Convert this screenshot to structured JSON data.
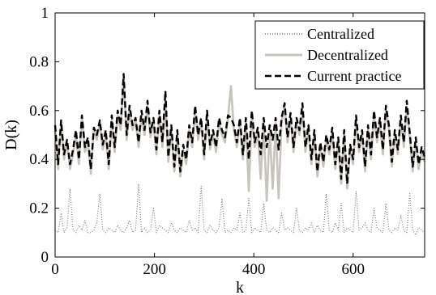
{
  "chart_data": {
    "type": "line",
    "title": "",
    "xlabel": "k",
    "ylabel": "D(k)",
    "xlim": [
      0,
      744
    ],
    "ylim": [
      0,
      1
    ],
    "grid": false,
    "legend_position": "top-right",
    "x_ticks": [
      0,
      200,
      400,
      600
    ],
    "y_ticks": [
      0,
      0.2,
      0.4,
      0.6,
      0.8,
      1
    ],
    "x_tick_labels": [
      "0",
      "200",
      "400",
      "600"
    ],
    "y_tick_labels": [
      "0",
      "0.2",
      "0.4",
      "0.6",
      "0.8",
      "1"
    ],
    "x_step": 6,
    "series": [
      {
        "name": "Centralized",
        "color": "#707070",
        "dash": "dotted",
        "values": [
          0.11,
          0.1,
          0.18,
          0.1,
          0.12,
          0.28,
          0.11,
          0.1,
          0.13,
          0.11,
          0.15,
          0.1,
          0.1,
          0.11,
          0.14,
          0.26,
          0.11,
          0.1,
          0.12,
          0.11,
          0.1,
          0.13,
          0.11,
          0.1,
          0.12,
          0.15,
          0.1,
          0.11,
          0.3,
          0.1,
          0.12,
          0.1,
          0.11,
          0.2,
          0.1,
          0.13,
          0.12,
          0.11,
          0.1,
          0.14,
          0.11,
          0.1,
          0.12,
          0.11,
          0.1,
          0.15,
          0.11,
          0.12,
          0.1,
          0.29,
          0.11,
          0.1,
          0.13,
          0.11,
          0.1,
          0.12,
          0.24,
          0.1,
          0.11,
          0.1,
          0.12,
          0.11,
          0.18,
          0.1,
          0.11,
          0.24,
          0.1,
          0.12,
          0.11,
          0.1,
          0.22,
          0.11,
          0.1,
          0.12,
          0.11,
          0.1,
          0.18,
          0.11,
          0.12,
          0.11,
          0.1,
          0.2,
          0.11,
          0.1,
          0.12,
          0.11,
          0.14,
          0.1,
          0.13,
          0.11,
          0.1,
          0.26,
          0.11,
          0.1,
          0.14,
          0.11,
          0.22,
          0.1,
          0.12,
          0.11,
          0.1,
          0.27,
          0.11,
          0.12,
          0.14,
          0.11,
          0.1,
          0.2,
          0.12,
          0.11,
          0.1,
          0.22,
          0.11,
          0.1,
          0.12,
          0.11,
          0.17,
          0.11,
          0.1,
          0.26,
          0.11,
          0.09,
          0.12,
          0.11,
          0.1
        ]
      },
      {
        "name": "Decentralized",
        "color": "#c8c4bc",
        "dash": "solid",
        "values": [
          0.52,
          0.36,
          0.55,
          0.4,
          0.47,
          0.36,
          0.42,
          0.5,
          0.38,
          0.57,
          0.43,
          0.47,
          0.34,
          0.52,
          0.48,
          0.55,
          0.44,
          0.5,
          0.36,
          0.56,
          0.43,
          0.58,
          0.52,
          0.73,
          0.48,
          0.6,
          0.52,
          0.56,
          0.45,
          0.58,
          0.5,
          0.62,
          0.49,
          0.55,
          0.42,
          0.58,
          0.45,
          0.64,
          0.39,
          0.52,
          0.35,
          0.5,
          0.33,
          0.44,
          0.38,
          0.52,
          0.45,
          0.6,
          0.48,
          0.55,
          0.4,
          0.58,
          0.44,
          0.5,
          0.43,
          0.55,
          0.5,
          0.47,
          0.57,
          0.7,
          0.52,
          0.45,
          0.55,
          0.4,
          0.55,
          0.27,
          0.58,
          0.45,
          0.51,
          0.32,
          0.55,
          0.23,
          0.52,
          0.28,
          0.55,
          0.24,
          0.55,
          0.62,
          0.47,
          0.57,
          0.43,
          0.55,
          0.5,
          0.6,
          0.43,
          0.52,
          0.38,
          0.5,
          0.33,
          0.45,
          0.37,
          0.48,
          0.42,
          0.51,
          0.36,
          0.47,
          0.3,
          0.5,
          0.28,
          0.44,
          0.38,
          0.56,
          0.43,
          0.5,
          0.35,
          0.52,
          0.4,
          0.58,
          0.47,
          0.55,
          0.42,
          0.6,
          0.52,
          0.37,
          0.5,
          0.42,
          0.56,
          0.45,
          0.61,
          0.49,
          0.35,
          0.47,
          0.36,
          0.43,
          0.39
        ]
      },
      {
        "name": "Current practice",
        "color": "#000000",
        "dash": "dashed",
        "values": [
          0.54,
          0.38,
          0.56,
          0.42,
          0.48,
          0.38,
          0.44,
          0.52,
          0.4,
          0.58,
          0.45,
          0.49,
          0.36,
          0.53,
          0.5,
          0.56,
          0.46,
          0.52,
          0.38,
          0.58,
          0.45,
          0.6,
          0.54,
          0.75,
          0.5,
          0.62,
          0.54,
          0.57,
          0.47,
          0.6,
          0.52,
          0.64,
          0.51,
          0.57,
          0.44,
          0.6,
          0.47,
          0.68,
          0.41,
          0.54,
          0.37,
          0.52,
          0.35,
          0.46,
          0.4,
          0.54,
          0.47,
          0.62,
          0.5,
          0.57,
          0.42,
          0.6,
          0.46,
          0.52,
          0.45,
          0.57,
          0.52,
          0.49,
          0.58,
          0.57,
          0.54,
          0.47,
          0.57,
          0.42,
          0.57,
          0.4,
          0.6,
          0.47,
          0.53,
          0.42,
          0.57,
          0.45,
          0.54,
          0.48,
          0.57,
          0.44,
          0.57,
          0.63,
          0.49,
          0.59,
          0.45,
          0.57,
          0.52,
          0.63,
          0.45,
          0.54,
          0.4,
          0.52,
          0.35,
          0.47,
          0.39,
          0.5,
          0.44,
          0.53,
          0.38,
          0.49,
          0.32,
          0.52,
          0.3,
          0.46,
          0.4,
          0.58,
          0.45,
          0.52,
          0.37,
          0.54,
          0.42,
          0.6,
          0.49,
          0.57,
          0.44,
          0.62,
          0.54,
          0.39,
          0.52,
          0.44,
          0.58,
          0.47,
          0.64,
          0.51,
          0.37,
          0.49,
          0.38,
          0.45,
          0.41
        ]
      }
    ]
  }
}
